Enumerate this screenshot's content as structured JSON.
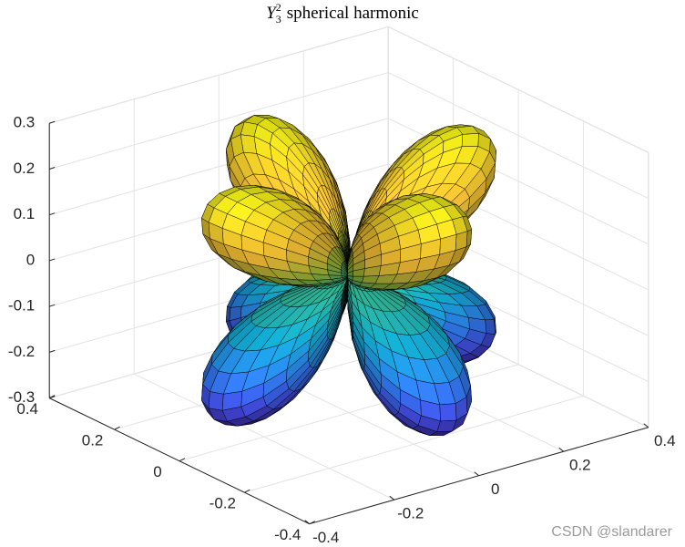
{
  "chart_data": {
    "type": "surface",
    "title": {
      "symbol": "Y",
      "degree": 3,
      "order": 2,
      "text": "spherical harmonic"
    },
    "xlim": [
      -0.4,
      0.4
    ],
    "xticks": [
      -0.4,
      -0.2,
      0,
      0.2,
      0.4
    ],
    "ylim": [
      -0.4,
      0.4
    ],
    "yticks": [
      -0.4,
      -0.2,
      0,
      0.2,
      0.4
    ],
    "zlim": [
      -0.3,
      0.3
    ],
    "zticks": [
      -0.3,
      -0.2,
      -0.1,
      0,
      0.1,
      0.2,
      0.3
    ],
    "view": [
      -37.5,
      30
    ],
    "grid": true,
    "colormap": "parula",
    "edge_color": "#000000",
    "watermark": "CSDN @slandarer"
  }
}
